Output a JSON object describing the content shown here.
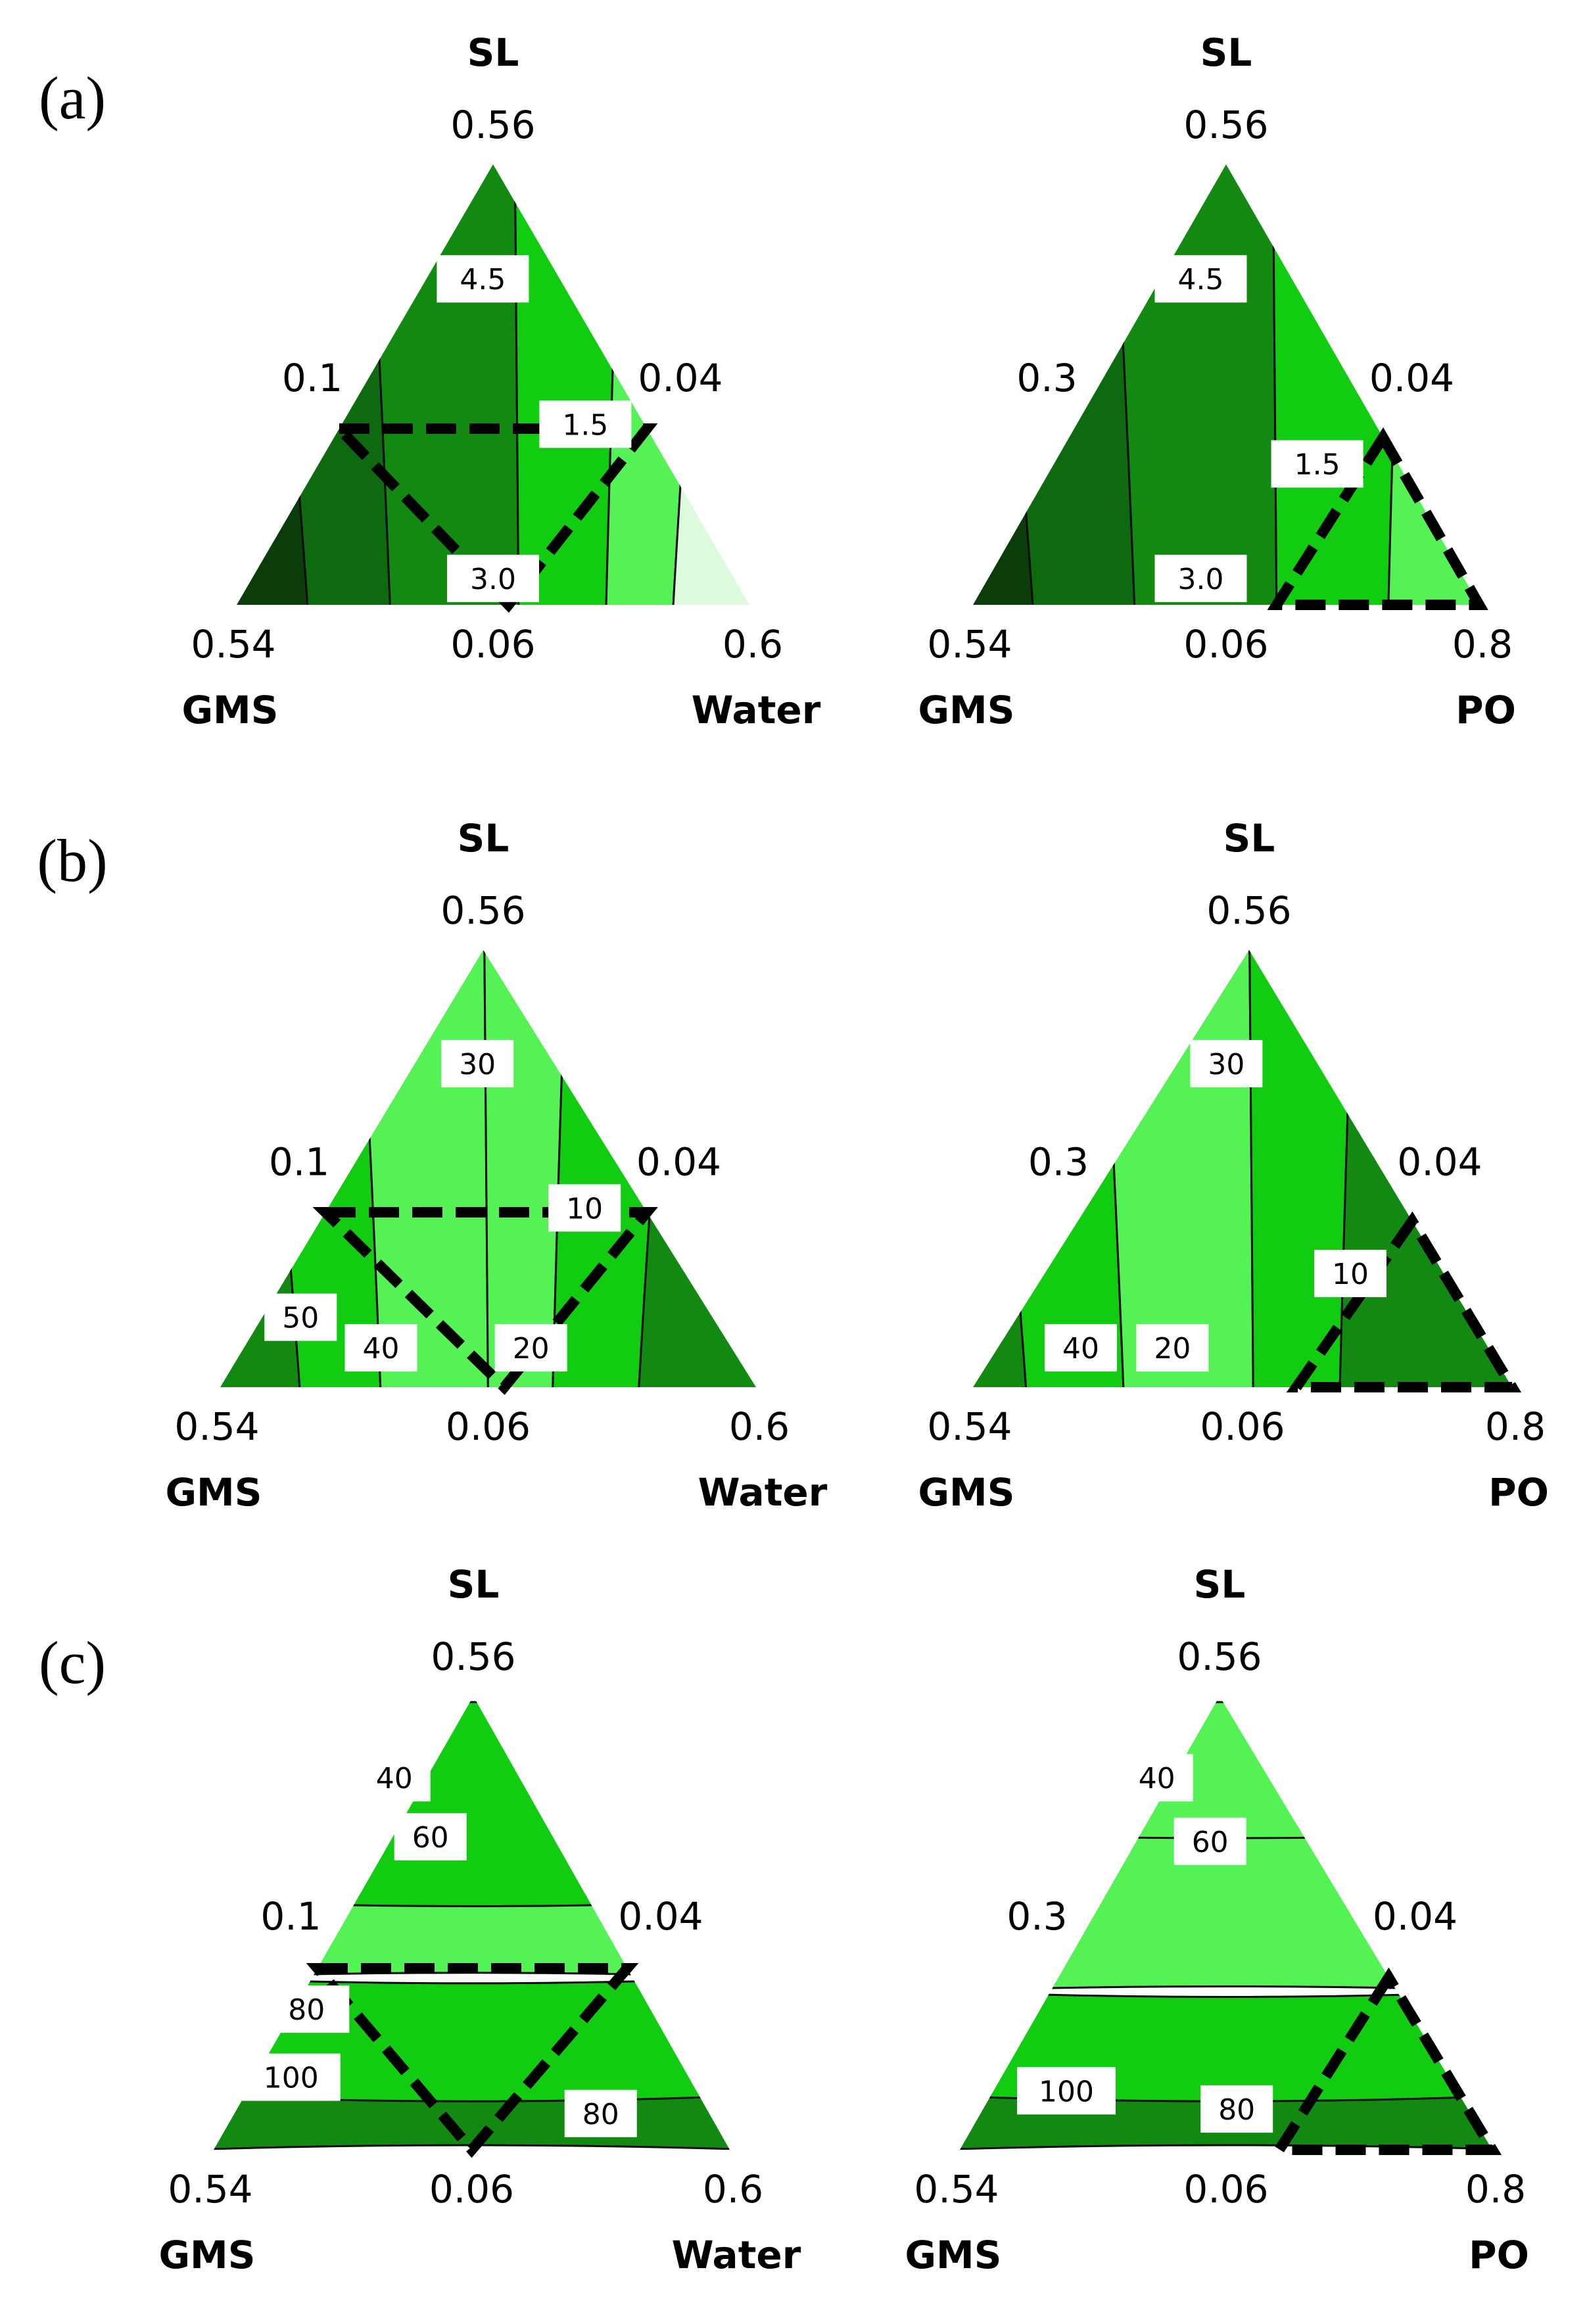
{
  "chart_data": [
    {
      "type": "contour",
      "panel": "(a)",
      "vertices": {
        "top": "SL",
        "left": "GMS",
        "right": "Water"
      },
      "ticks": {
        "top": "0.56",
        "left_side": "0.1",
        "right_side": "0.04",
        "bottom_left": "0.54",
        "bottom_mid": "0.06",
        "bottom_right": "0.6"
      },
      "contour_labels": [
        "4.5",
        "1.5",
        "3.0"
      ],
      "region": "dashed-triangle"
    },
    {
      "type": "contour",
      "panel": "",
      "vertices": {
        "top": "SL",
        "left": "GMS",
        "right": "PO"
      },
      "ticks": {
        "top": "0.56",
        "left_side": "0.3",
        "right_side": "0.04",
        "bottom_left": "0.54",
        "bottom_mid": "0.06",
        "bottom_right": "0.8"
      },
      "contour_labels": [
        "4.5",
        "1.5",
        "3.0"
      ],
      "region": "dashed-triangle"
    },
    {
      "type": "contour",
      "panel": "(b)",
      "vertices": {
        "top": "SL",
        "left": "GMS",
        "right": "Water"
      },
      "ticks": {
        "top": "0.56",
        "left_side": "0.1",
        "right_side": "0.04",
        "bottom_left": "0.54",
        "bottom_mid": "0.06",
        "bottom_right": "0.6"
      },
      "contour_labels": [
        "30",
        "10",
        "50",
        "40",
        "20"
      ],
      "region": "dashed-triangle"
    },
    {
      "type": "contour",
      "panel": "",
      "vertices": {
        "top": "SL",
        "left": "GMS",
        "right": "PO"
      },
      "ticks": {
        "top": "0.56",
        "left_side": "0.3",
        "right_side": "0.04",
        "bottom_left": "0.54",
        "bottom_mid": "0.06",
        "bottom_right": "0.8"
      },
      "contour_labels": [
        "30",
        "10",
        "40",
        "20"
      ],
      "region": "dashed-triangle"
    },
    {
      "type": "contour",
      "panel": "(c)",
      "vertices": {
        "top": "SL",
        "left": "GMS",
        "right": "Water"
      },
      "ticks": {
        "top": "0.56",
        "left_side": "0.1",
        "right_side": "0.04",
        "bottom_left": "0.54",
        "bottom_mid": "0.06",
        "bottom_right": "0.6"
      },
      "contour_labels": [
        "40",
        "60",
        "80",
        "100",
        "80"
      ],
      "region": "dashed-triangle"
    },
    {
      "type": "contour",
      "panel": "",
      "vertices": {
        "top": "SL",
        "left": "GMS",
        "right": "PO"
      },
      "ticks": {
        "top": "0.56",
        "left_side": "0.3",
        "right_side": "0.04",
        "bottom_left": "0.54",
        "bottom_mid": "0.06",
        "bottom_right": "0.8"
      },
      "contour_labels": [
        "40",
        "60",
        "100",
        "80"
      ],
      "region": "dashed-triangle"
    }
  ],
  "colors": {
    "darkest": "#0a3d0a",
    "dark": "#0e6a0e",
    "mid_dark": "#128a12",
    "mid": "#1cae1c",
    "bright": "#11cc11",
    "light": "#55f255",
    "lighter": "#a6f7a6",
    "palest": "#dcfadc",
    "line": "#0b0b0b"
  }
}
